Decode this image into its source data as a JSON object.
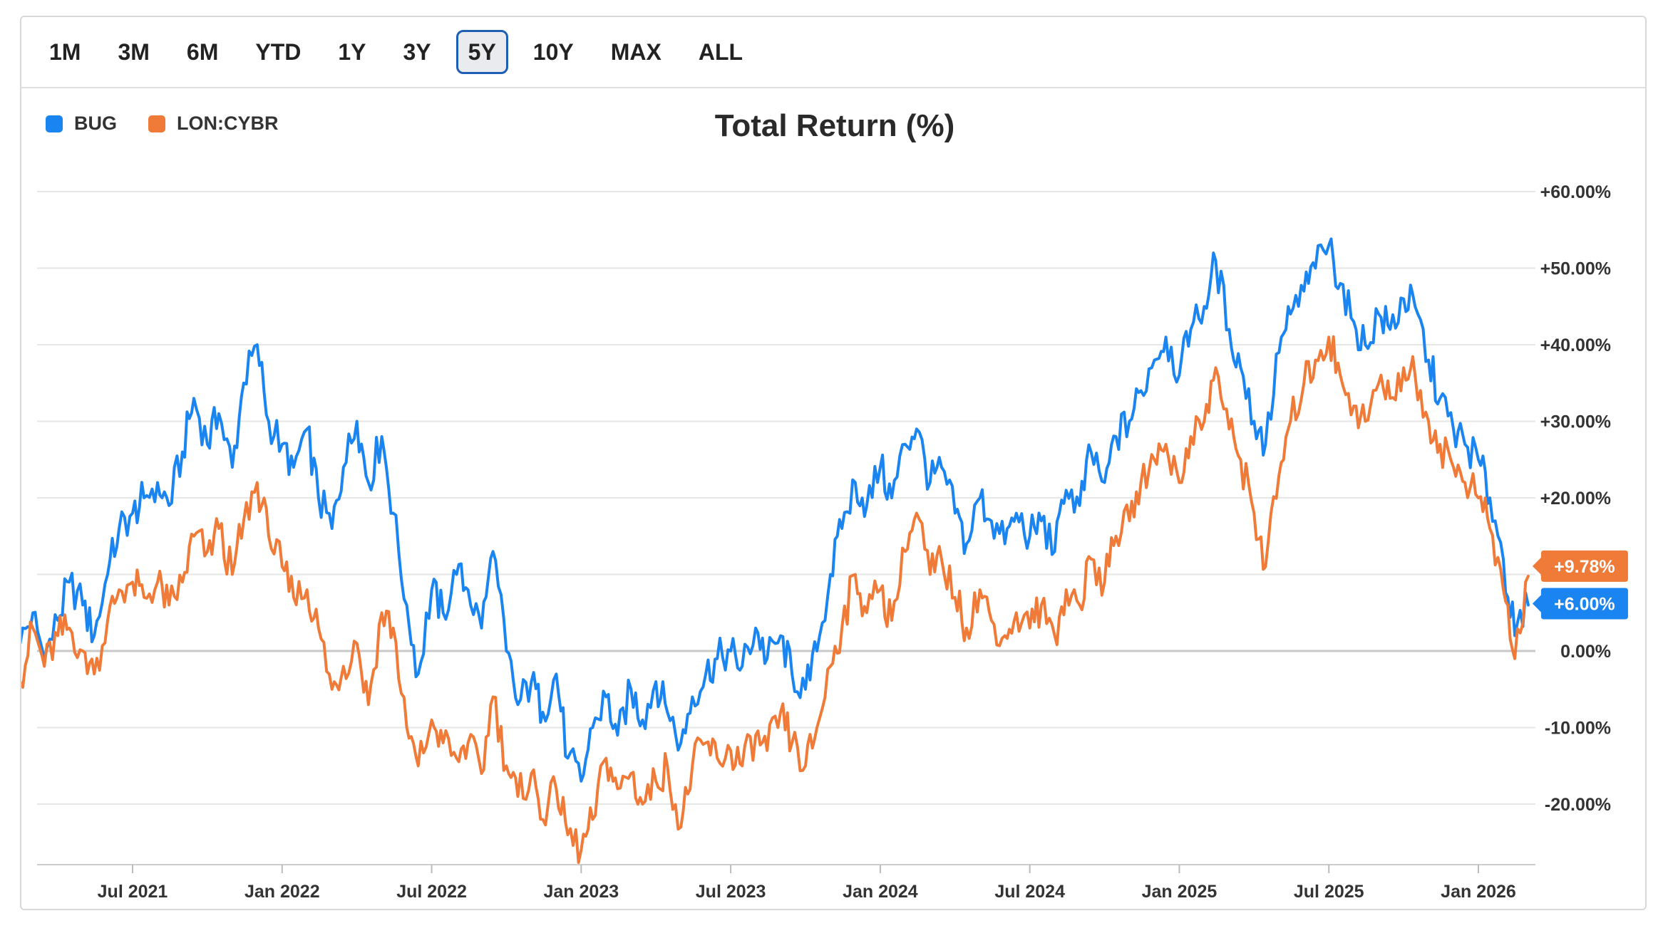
{
  "range_buttons": [
    {
      "label": "1M"
    },
    {
      "label": "3M"
    },
    {
      "label": "6M"
    },
    {
      "label": "YTD"
    },
    {
      "label": "1Y"
    },
    {
      "label": "3Y"
    },
    {
      "label": "5Y",
      "active": true
    },
    {
      "label": "10Y"
    },
    {
      "label": "MAX"
    },
    {
      "label": "ALL"
    }
  ],
  "colors": {
    "bug": "#1a84f0",
    "cybr": "#f07a37",
    "grid": "#e6e6e6",
    "zero": "#c8c8c8"
  },
  "chart_data": {
    "type": "line",
    "title": "Total Return (%)",
    "xlabel": "",
    "ylabel": "",
    "ylim": [
      -28,
      60
    ],
    "y_ticks": [
      60,
      50,
      40,
      30,
      20,
      10,
      0,
      -10,
      -20
    ],
    "y_tick_labels": [
      "+60.00%",
      "+50.00%",
      "+40.00%",
      "+30.00%",
      "+20.00%",
      "+10.00%",
      "0.00%",
      "-10.00%",
      "-20.00%"
    ],
    "x_range": [
      "2021-02",
      "2026-03"
    ],
    "x_ticks": [
      {
        "date": "2021-07",
        "label": "Jul 2021"
      },
      {
        "date": "2022-01",
        "label": "Jan 2022"
      },
      {
        "date": "2022-07",
        "label": "Jul 2022"
      },
      {
        "date": "2023-01",
        "label": "Jan 2023"
      },
      {
        "date": "2023-07",
        "label": "Jul 2023"
      },
      {
        "date": "2024-01",
        "label": "Jan 2024"
      },
      {
        "date": "2024-07",
        "label": "Jul 2024"
      },
      {
        "date": "2025-01",
        "label": "Jan 2025"
      },
      {
        "date": "2025-07",
        "label": "Jul 2025"
      },
      {
        "date": "2026-01",
        "label": "Jan 2026"
      }
    ],
    "legend_position": "top-left",
    "series": [
      {
        "name": "BUG",
        "color": "#1a84f0",
        "last_value_label": "+6.00%",
        "points": [
          [
            "2021-02-16",
            1
          ],
          [
            "2021-03-01",
            5
          ],
          [
            "2021-03-15",
            -1
          ],
          [
            "2021-04-01",
            4
          ],
          [
            "2021-04-15",
            9
          ],
          [
            "2021-05-01",
            6
          ],
          [
            "2021-05-15",
            2
          ],
          [
            "2021-06-01",
            10
          ],
          [
            "2021-06-15",
            16
          ],
          [
            "2021-07-01",
            18
          ],
          [
            "2021-07-15",
            20
          ],
          [
            "2021-08-01",
            22
          ],
          [
            "2021-08-15",
            19
          ],
          [
            "2021-09-01",
            26
          ],
          [
            "2021-09-15",
            33
          ],
          [
            "2021-10-01",
            27
          ],
          [
            "2021-10-15",
            31
          ],
          [
            "2021-11-01",
            24
          ],
          [
            "2021-11-15",
            35
          ],
          [
            "2021-12-01",
            40
          ],
          [
            "2021-12-15",
            30
          ],
          [
            "2022-01-01",
            27
          ],
          [
            "2022-01-15",
            24
          ],
          [
            "2022-02-01",
            29
          ],
          [
            "2022-02-15",
            20
          ],
          [
            "2022-03-01",
            16
          ],
          [
            "2022-03-15",
            24
          ],
          [
            "2022-04-01",
            30
          ],
          [
            "2022-04-15",
            22
          ],
          [
            "2022-05-01",
            28
          ],
          [
            "2022-05-15",
            18
          ],
          [
            "2022-06-01",
            6
          ],
          [
            "2022-06-15",
            -3
          ],
          [
            "2022-07-01",
            8
          ],
          [
            "2022-07-15",
            5
          ],
          [
            "2022-08-01",
            10
          ],
          [
            "2022-08-15",
            8
          ],
          [
            "2022-09-01",
            3
          ],
          [
            "2022-09-15",
            13
          ],
          [
            "2022-10-01",
            0
          ],
          [
            "2022-10-15",
            -7
          ],
          [
            "2022-11-01",
            -4
          ],
          [
            "2022-11-15",
            -8
          ],
          [
            "2022-12-01",
            -3
          ],
          [
            "2022-12-15",
            -14
          ],
          [
            "2023-01-01",
            -17
          ],
          [
            "2023-01-15",
            -10
          ],
          [
            "2023-02-01",
            -6
          ],
          [
            "2023-02-15",
            -11
          ],
          [
            "2023-03-01",
            -5
          ],
          [
            "2023-03-15",
            -9
          ],
          [
            "2023-04-01",
            -4
          ],
          [
            "2023-04-15",
            -8
          ],
          [
            "2023-05-01",
            -12
          ],
          [
            "2023-05-15",
            -6
          ],
          [
            "2023-06-01",
            -3
          ],
          [
            "2023-06-15",
            -1
          ],
          [
            "2023-07-01",
            0
          ],
          [
            "2023-07-15",
            -2
          ],
          [
            "2023-08-01",
            3
          ],
          [
            "2023-08-15",
            -1
          ],
          [
            "2023-09-01",
            2
          ],
          [
            "2023-09-15",
            -3
          ],
          [
            "2023-10-01",
            -5
          ],
          [
            "2023-10-15",
            0
          ],
          [
            "2023-11-01",
            10
          ],
          [
            "2023-11-15",
            16
          ],
          [
            "2023-12-01",
            22
          ],
          [
            "2023-12-15",
            19
          ],
          [
            "2024-01-01",
            24
          ],
          [
            "2024-01-15",
            20
          ],
          [
            "2024-02-01",
            27
          ],
          [
            "2024-02-15",
            29
          ],
          [
            "2024-03-01",
            22
          ],
          [
            "2024-03-15",
            24
          ],
          [
            "2024-04-01",
            18
          ],
          [
            "2024-04-15",
            14
          ],
          [
            "2024-05-01",
            20
          ],
          [
            "2024-05-15",
            17
          ],
          [
            "2024-06-01",
            14
          ],
          [
            "2024-06-15",
            18
          ],
          [
            "2024-07-01",
            15
          ],
          [
            "2024-07-15",
            17
          ],
          [
            "2024-08-01",
            13
          ],
          [
            "2024-08-15",
            21
          ],
          [
            "2024-09-01",
            19
          ],
          [
            "2024-09-15",
            26
          ],
          [
            "2024-10-01",
            22
          ],
          [
            "2024-10-15",
            28
          ],
          [
            "2024-11-01",
            30
          ],
          [
            "2024-11-15",
            34
          ],
          [
            "2024-12-01",
            38
          ],
          [
            "2024-12-15",
            41
          ],
          [
            "2025-01-01",
            36
          ],
          [
            "2025-01-15",
            42
          ],
          [
            "2025-02-01",
            45
          ],
          [
            "2025-02-15",
            51
          ],
          [
            "2025-03-01",
            42
          ],
          [
            "2025-03-15",
            37
          ],
          [
            "2025-04-01",
            30
          ],
          [
            "2025-04-15",
            27
          ],
          [
            "2025-05-01",
            39
          ],
          [
            "2025-05-15",
            44
          ],
          [
            "2025-06-01",
            47
          ],
          [
            "2025-06-15",
            50
          ],
          [
            "2025-07-01",
            53
          ],
          [
            "2025-07-15",
            48
          ],
          [
            "2025-08-01",
            43
          ],
          [
            "2025-08-15",
            40
          ],
          [
            "2025-09-01",
            44
          ],
          [
            "2025-09-15",
            42
          ],
          [
            "2025-10-01",
            46
          ],
          [
            "2025-10-15",
            45
          ],
          [
            "2025-11-01",
            38
          ],
          [
            "2025-11-15",
            33
          ],
          [
            "2025-12-01",
            29
          ],
          [
            "2025-12-15",
            27
          ],
          [
            "2026-01-01",
            25
          ],
          [
            "2026-01-15",
            20
          ],
          [
            "2026-02-01",
            12
          ],
          [
            "2026-02-15",
            2
          ],
          [
            "2026-03-01",
            6
          ]
        ]
      },
      {
        "name": "LON:CYBR",
        "color": "#f07a37",
        "last_value_label": "+9.78%",
        "points": [
          [
            "2021-02-16",
            -4
          ],
          [
            "2021-03-01",
            3
          ],
          [
            "2021-03-15",
            -2
          ],
          [
            "2021-04-01",
            2
          ],
          [
            "2021-04-15",
            3
          ],
          [
            "2021-05-01",
            0
          ],
          [
            "2021-05-15",
            -3
          ],
          [
            "2021-06-01",
            4
          ],
          [
            "2021-06-15",
            8
          ],
          [
            "2021-07-01",
            9
          ],
          [
            "2021-07-15",
            7
          ],
          [
            "2021-08-01",
            9
          ],
          [
            "2021-08-15",
            6
          ],
          [
            "2021-09-01",
            9
          ],
          [
            "2021-09-15",
            15
          ],
          [
            "2021-10-01",
            13
          ],
          [
            "2021-10-15",
            16
          ],
          [
            "2021-11-01",
            10
          ],
          [
            "2021-11-15",
            17
          ],
          [
            "2021-12-01",
            22
          ],
          [
            "2021-12-15",
            15
          ],
          [
            "2022-01-01",
            11
          ],
          [
            "2022-01-15",
            7
          ],
          [
            "2022-02-01",
            8
          ],
          [
            "2022-02-15",
            3
          ],
          [
            "2022-03-01",
            -5
          ],
          [
            "2022-03-15",
            -2
          ],
          [
            "2022-04-01",
            1
          ],
          [
            "2022-04-15",
            -7
          ],
          [
            "2022-05-01",
            5
          ],
          [
            "2022-05-15",
            3
          ],
          [
            "2022-06-01",
            -10
          ],
          [
            "2022-06-15",
            -15
          ],
          [
            "2022-07-01",
            -9
          ],
          [
            "2022-07-15",
            -12
          ],
          [
            "2022-08-01",
            -14
          ],
          [
            "2022-08-15",
            -12
          ],
          [
            "2022-09-01",
            -16
          ],
          [
            "2022-09-15",
            -6
          ],
          [
            "2022-10-01",
            -15
          ],
          [
            "2022-10-15",
            -19
          ],
          [
            "2022-11-01",
            -16
          ],
          [
            "2022-11-15",
            -22
          ],
          [
            "2022-12-01",
            -18
          ],
          [
            "2022-12-15",
            -24
          ],
          [
            "2023-01-01",
            -26
          ],
          [
            "2023-01-15",
            -22
          ],
          [
            "2023-02-01",
            -14
          ],
          [
            "2023-02-15",
            -18
          ],
          [
            "2023-03-01",
            -16
          ],
          [
            "2023-03-15",
            -20
          ],
          [
            "2023-04-01",
            -17
          ],
          [
            "2023-04-15",
            -15
          ],
          [
            "2023-05-01",
            -23
          ],
          [
            "2023-05-15",
            -15
          ],
          [
            "2023-06-01",
            -12
          ],
          [
            "2023-06-15",
            -14
          ],
          [
            "2023-07-01",
            -13
          ],
          [
            "2023-07-15",
            -15
          ],
          [
            "2023-08-01",
            -11
          ],
          [
            "2023-08-15",
            -13
          ],
          [
            "2023-09-01",
            -8
          ],
          [
            "2023-09-15",
            -12
          ],
          [
            "2023-10-01",
            -15
          ],
          [
            "2023-10-15",
            -10
          ],
          [
            "2023-11-01",
            -2
          ],
          [
            "2023-11-15",
            3
          ],
          [
            "2023-12-01",
            10
          ],
          [
            "2023-12-15",
            5
          ],
          [
            "2024-01-01",
            8
          ],
          [
            "2024-01-15",
            4
          ],
          [
            "2024-02-01",
            13
          ],
          [
            "2024-02-15",
            18
          ],
          [
            "2024-03-01",
            10
          ],
          [
            "2024-03-15",
            12
          ],
          [
            "2024-04-01",
            7
          ],
          [
            "2024-04-15",
            3
          ],
          [
            "2024-05-01",
            8
          ],
          [
            "2024-05-15",
            4
          ],
          [
            "2024-06-01",
            2
          ],
          [
            "2024-06-15",
            5
          ],
          [
            "2024-07-01",
            3
          ],
          [
            "2024-07-15",
            6
          ],
          [
            "2024-08-01",
            2
          ],
          [
            "2024-08-15",
            8
          ],
          [
            "2024-09-01",
            6
          ],
          [
            "2024-09-15",
            12
          ],
          [
            "2024-10-01",
            9
          ],
          [
            "2024-10-15",
            15
          ],
          [
            "2024-11-01",
            17
          ],
          [
            "2024-11-15",
            22
          ],
          [
            "2024-12-01",
            25
          ],
          [
            "2024-12-15",
            27
          ],
          [
            "2025-01-01",
            22
          ],
          [
            "2025-01-15",
            28
          ],
          [
            "2025-02-01",
            30
          ],
          [
            "2025-02-15",
            37
          ],
          [
            "2025-03-01",
            29
          ],
          [
            "2025-03-15",
            25
          ],
          [
            "2025-04-01",
            18
          ],
          [
            "2025-04-15",
            11
          ],
          [
            "2025-05-01",
            23
          ],
          [
            "2025-05-15",
            30
          ],
          [
            "2025-06-01",
            35
          ],
          [
            "2025-06-15",
            38
          ],
          [
            "2025-07-01",
            41
          ],
          [
            "2025-07-15",
            36
          ],
          [
            "2025-08-01",
            32
          ],
          [
            "2025-08-15",
            30
          ],
          [
            "2025-09-01",
            35
          ],
          [
            "2025-09-15",
            33
          ],
          [
            "2025-10-01",
            37
          ],
          [
            "2025-10-15",
            36
          ],
          [
            "2025-11-01",
            30
          ],
          [
            "2025-11-15",
            27
          ],
          [
            "2025-12-01",
            24
          ],
          [
            "2025-12-15",
            22
          ],
          [
            "2026-01-01",
            20
          ],
          [
            "2026-01-15",
            16
          ],
          [
            "2026-02-01",
            8
          ],
          [
            "2026-02-15",
            -1
          ],
          [
            "2026-03-01",
            9.78
          ]
        ]
      }
    ]
  }
}
